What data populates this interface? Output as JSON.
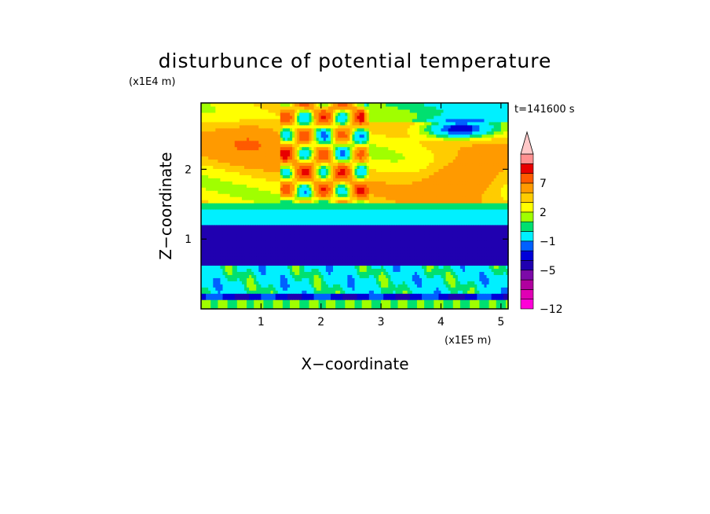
{
  "chart_data": {
    "type": "heatmap",
    "title": "disturbunce of potential temperature",
    "xlabel": "X−coordinate",
    "ylabel": "Z−coordinate",
    "x_unit": "(x1E5 m)",
    "y_unit": "(x1E4 m)",
    "time_label": "t=141600 s",
    "xlim": [
      0,
      5.12
    ],
    "ylim": [
      0,
      2.95
    ],
    "x_ticks": [
      1,
      2,
      3,
      4,
      5
    ],
    "x_tick_labels": [
      "1",
      "2",
      "3",
      "4",
      "5"
    ],
    "y_ticks": [
      1,
      2
    ],
    "y_tick_labels": [
      "1",
      "2"
    ],
    "colorbar": {
      "levels": [
        -12,
        -11,
        -9,
        -7,
        -5,
        -4,
        -3,
        -1,
        0,
        1,
        2,
        3,
        5,
        7,
        9,
        11
      ],
      "colors": [
        "#ff00d8",
        "#e000b4",
        "#b0009e",
        "#7c0aa8",
        "#2000b0",
        "#0000d8",
        "#0060ff",
        "#00f0ff",
        "#00e070",
        "#a0ff00",
        "#ffff00",
        "#ffcc00",
        "#ff9a00",
        "#ff5a00",
        "#e80000",
        "#ff9090",
        "#ffc8c8"
      ],
      "labeled_levels": [
        -12,
        -5,
        -1,
        2,
        7
      ],
      "labels": [
        "−12",
        "−5",
        "−1",
        "2",
        "7"
      ],
      "extend": "max"
    }
  }
}
